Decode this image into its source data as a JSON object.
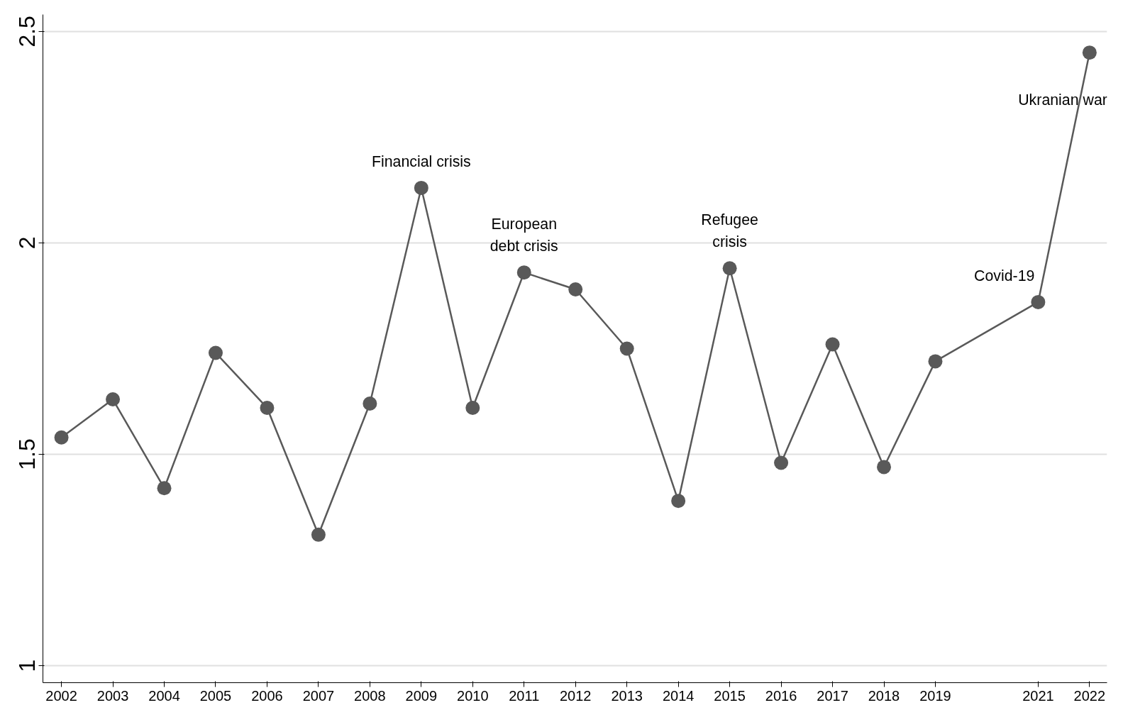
{
  "chart_data": {
    "type": "line",
    "x": [
      2002,
      2003,
      2004,
      2005,
      2006,
      2007,
      2008,
      2009,
      2010,
      2011,
      2012,
      2013,
      2014,
      2015,
      2016,
      2017,
      2018,
      2019,
      2021,
      2022
    ],
    "series": [
      {
        "color": "#595959",
        "values": [
          1.54,
          1.63,
          1.42,
          1.74,
          1.61,
          1.31,
          1.62,
          2.13,
          1.61,
          1.93,
          1.89,
          1.75,
          1.39,
          1.94,
          1.48,
          1.76,
          1.47,
          1.72,
          1.86,
          2.45
        ]
      }
    ],
    "xlim": [
      2001.64,
      2022.34
    ],
    "xticks": [
      2002,
      2003,
      2004,
      2005,
      2006,
      2007,
      2008,
      2009,
      2010,
      2011,
      2012,
      2013,
      2014,
      2015,
      2016,
      2017,
      2018,
      2019,
      2021,
      2022
    ],
    "ylim": [
      0.96,
      2.54
    ],
    "yticks": [
      1,
      1.5,
      2,
      2.5
    ],
    "grid": "y",
    "marker": "circle",
    "line_style": "solid",
    "annotations": [
      {
        "text": "Financial crisis",
        "x": 2009,
        "y": 2.13
      },
      {
        "text": "European\ndebt crisis",
        "x": 2011,
        "y": 1.93
      },
      {
        "text": "Refugee\ncrisis",
        "x": 2015,
        "y": 1.94
      },
      {
        "text": "Covid-19",
        "x": 2021,
        "y": 1.86
      },
      {
        "text": "Ukranian war",
        "x": 2022,
        "y": 2.45
      }
    ]
  }
}
